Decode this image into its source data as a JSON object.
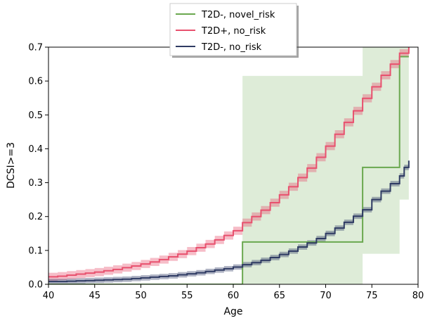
{
  "chart_data": {
    "type": "line",
    "title": "",
    "xlabel": "Age",
    "ylabel": "DCSI>=3",
    "xlim": [
      40,
      80
    ],
    "ylim": [
      0,
      0.7
    ],
    "x_ticks": [
      "40",
      "45",
      "50",
      "55",
      "60",
      "65",
      "70",
      "75",
      "80"
    ],
    "y_ticks": [
      "0.0",
      "0.1",
      "0.2",
      "0.3",
      "0.4",
      "0.5",
      "0.6",
      "0.7"
    ],
    "grid": false,
    "legend_position": "top-center",
    "colors": {
      "t2d_neg_novel": "#6aa84f",
      "t2d_pos_no_risk": "#e8516e",
      "t2d_neg_no_risk": "#2f3b63"
    },
    "series": [
      {
        "name": "T2D-, novel_risk",
        "color_key": "t2d_neg_novel",
        "step": true,
        "points": [
          [
            40,
            0.0
          ],
          [
            61,
            0.0
          ],
          [
            61,
            0.125
          ],
          [
            74,
            0.125
          ],
          [
            74,
            0.345
          ],
          [
            78,
            0.345
          ],
          [
            78,
            0.672
          ],
          [
            79,
            0.672
          ]
        ],
        "band": [
          [
            61,
            0.0,
            0.615
          ],
          [
            74,
            0.09,
            0.7
          ],
          [
            78,
            0.25,
            0.7
          ],
          [
            79,
            0.25,
            0.7
          ]
        ]
      },
      {
        "name": "T2D+, no_risk",
        "color_key": "t2d_pos_no_risk",
        "step": true,
        "points": [
          [
            40,
            0.022
          ],
          [
            41,
            0.024
          ],
          [
            42,
            0.027
          ],
          [
            43,
            0.03
          ],
          [
            44,
            0.033
          ],
          [
            45,
            0.036
          ],
          [
            46,
            0.04
          ],
          [
            47,
            0.044
          ],
          [
            48,
            0.049
          ],
          [
            49,
            0.054
          ],
          [
            50,
            0.06
          ],
          [
            51,
            0.066
          ],
          [
            52,
            0.073
          ],
          [
            53,
            0.081
          ],
          [
            54,
            0.089
          ],
          [
            55,
            0.098
          ],
          [
            56,
            0.108
          ],
          [
            57,
            0.119
          ],
          [
            58,
            0.131
          ],
          [
            59,
            0.144
          ],
          [
            60,
            0.158
          ],
          [
            61,
            0.182
          ],
          [
            62,
            0.2
          ],
          [
            63,
            0.219
          ],
          [
            64,
            0.241
          ],
          [
            65,
            0.264
          ],
          [
            66,
            0.288
          ],
          [
            67,
            0.315
          ],
          [
            68,
            0.343
          ],
          [
            69,
            0.375
          ],
          [
            70,
            0.408
          ],
          [
            71,
            0.443
          ],
          [
            72,
            0.478
          ],
          [
            73,
            0.512
          ],
          [
            74,
            0.549
          ],
          [
            75,
            0.583
          ],
          [
            76,
            0.617
          ],
          [
            77,
            0.65
          ],
          [
            78,
            0.682
          ],
          [
            79,
            0.7
          ]
        ],
        "band_halfwidth": 0.012
      },
      {
        "name": "T2D-, no_risk",
        "color_key": "t2d_neg_no_risk",
        "step": true,
        "points": [
          [
            40,
            0.008
          ],
          [
            41,
            0.008
          ],
          [
            42,
            0.009
          ],
          [
            43,
            0.01
          ],
          [
            44,
            0.011
          ],
          [
            45,
            0.012
          ],
          [
            46,
            0.013
          ],
          [
            47,
            0.014
          ],
          [
            48,
            0.015
          ],
          [
            49,
            0.017
          ],
          [
            50,
            0.019
          ],
          [
            51,
            0.021
          ],
          [
            52,
            0.023
          ],
          [
            53,
            0.025
          ],
          [
            54,
            0.028
          ],
          [
            55,
            0.031
          ],
          [
            56,
            0.034
          ],
          [
            57,
            0.038
          ],
          [
            58,
            0.042
          ],
          [
            59,
            0.046
          ],
          [
            60,
            0.051
          ],
          [
            61,
            0.058
          ],
          [
            62,
            0.064
          ],
          [
            63,
            0.071
          ],
          [
            64,
            0.079
          ],
          [
            65,
            0.088
          ],
          [
            66,
            0.098
          ],
          [
            67,
            0.11
          ],
          [
            68,
            0.122
          ],
          [
            69,
            0.135
          ],
          [
            70,
            0.15
          ],
          [
            71,
            0.166
          ],
          [
            72,
            0.183
          ],
          [
            73,
            0.201
          ],
          [
            74,
            0.22
          ],
          [
            75,
            0.25
          ],
          [
            76,
            0.275
          ],
          [
            77,
            0.297
          ],
          [
            78,
            0.32
          ],
          [
            78.5,
            0.345
          ],
          [
            79,
            0.365
          ]
        ],
        "band_halfwidth": 0.008
      }
    ]
  }
}
